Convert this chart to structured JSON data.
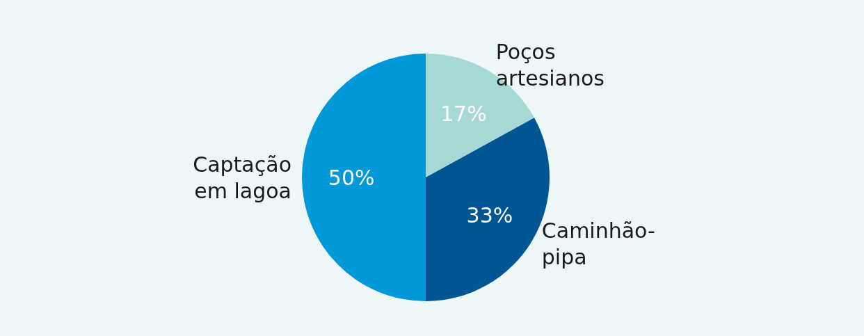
{
  "chart_data": {
    "type": "pie",
    "categories": [
      "Poços artesianos",
      "Caminhão-pipa",
      "Captação em lagoa"
    ],
    "values": [
      17,
      33,
      50
    ],
    "colors": [
      "#a6d8d6",
      "#005593",
      "#0098d6"
    ],
    "value_labels": [
      "17%",
      "33%",
      "50%"
    ]
  }
}
